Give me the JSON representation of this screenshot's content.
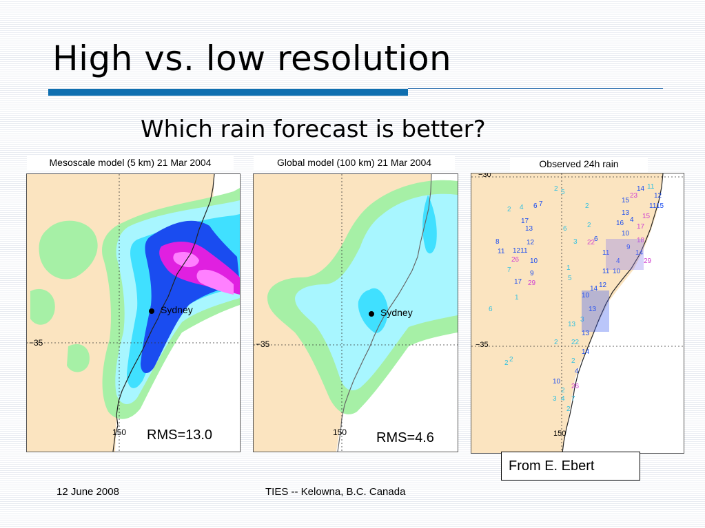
{
  "slide": {
    "title": "High vs. low resolution",
    "subtitle": "Which rain forecast is better?"
  },
  "panels": [
    {
      "title": "Mesoscale model (5 km) 21 Mar 2004",
      "rms": "RMS=13.0",
      "city": "Sydney",
      "lat_label": "−35",
      "lon_label": "150"
    },
    {
      "title": "Global model (100 km) 21 Mar 2004",
      "rms": "RMS=4.6",
      "city": "Sydney",
      "lat_label": "−35",
      "lon_label": "150"
    },
    {
      "title": "Observed 24h rain",
      "lat_label": "−35",
      "lon_label": "150",
      "top_label": "−30"
    }
  ],
  "credit": "From E. Ebert",
  "footer": {
    "date": "12 June 2008",
    "event": "TIES -- Kelowna, B.C. Canada"
  },
  "colors": {
    "accent_bar": "#0f6fb0",
    "land": "#fbe4c0",
    "rain_light_green": "#a6f0a6",
    "rain_light_cyan": "#a8f6ff",
    "rain_cyan": "#40e0ff",
    "rain_blue": "#1a4cf0",
    "rain_magenta": "#e020e0"
  }
}
